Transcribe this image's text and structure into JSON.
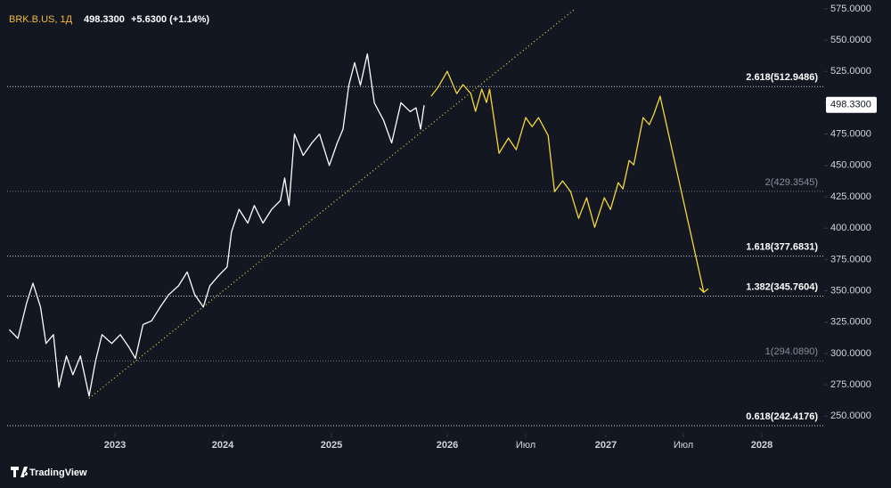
{
  "chart_data": {
    "type": "line",
    "symbol": "BRK.B.US, 1Д",
    "last_price": {
      "value": 498.33,
      "label": "498.3300"
    },
    "change": {
      "value": 5.63,
      "label": "+5.6300 (+1.14%)"
    },
    "brand": "TradingView",
    "xlim": [
      2022,
      2028.4
    ],
    "xticks": [
      2023,
      2024,
      2025,
      2026,
      {
        "value": 2026.5,
        "label": "Июл"
      },
      2027,
      {
        "value": 2027.5,
        "label": "Июл"
      },
      2028
    ],
    "ylim": [
      236,
      582
    ],
    "yticks": [
      {
        "value": 250,
        "label": "250.0000"
      },
      {
        "value": 275,
        "label": "275.0000"
      },
      {
        "value": 300,
        "label": "300.0000"
      },
      {
        "value": 325,
        "label": "325.0000"
      },
      {
        "value": 350,
        "label": "350.0000"
      },
      {
        "value": 375,
        "label": "375.0000"
      },
      {
        "value": 400,
        "label": "400.0000"
      },
      {
        "value": 425,
        "label": "425.0000"
      },
      {
        "value": 450,
        "label": "450.0000"
      },
      {
        "value": 475,
        "label": "475.0000"
      },
      {
        "value": 500,
        "label": "500.0000"
      },
      {
        "value": 525,
        "label": "525.0000"
      },
      {
        "value": 550,
        "label": "550.0000"
      },
      {
        "value": 575,
        "label": "575.0000"
      }
    ],
    "series": [
      {
        "color": "#ffffff",
        "x": [
          2022.02,
          2022.1,
          2022.18,
          2022.24,
          2022.31,
          2022.36,
          2022.43,
          2022.48,
          2022.55,
          2022.61,
          2022.68,
          2022.76,
          2022.82,
          2022.88,
          2022.97,
          2023.05,
          2023.13,
          2023.19,
          2023.26,
          2023.34,
          2023.42,
          2023.5,
          2023.59,
          2023.67,
          2023.74,
          2023.82,
          2023.88,
          2023.96,
          2024.04,
          2024.08,
          2024.15,
          2024.23,
          2024.29,
          2024.37,
          2024.45,
          2024.53,
          2024.57,
          2024.61,
          2024.66,
          2024.74,
          2024.82,
          2024.89,
          2024.98,
          2025.05,
          2025.1,
          2025.15,
          2025.2,
          2025.25,
          2025.31,
          2025.37,
          2025.45,
          2025.52,
          2025.6,
          2025.68,
          2025.73,
          2025.77,
          2025.8
        ],
        "values": [
          319,
          312,
          340,
          356,
          337,
          308,
          315,
          273,
          298,
          283,
          298,
          266,
          294,
          315,
          308,
          315,
          305,
          296,
          323,
          326,
          337,
          347,
          354,
          365,
          347,
          337,
          354,
          362,
          369,
          397,
          415,
          404,
          418,
          404,
          415,
          422,
          440,
          418,
          475,
          458,
          468,
          475,
          450,
          468,
          479,
          514,
          532,
          514,
          539,
          500,
          486,
          468,
          500,
          493,
          496,
          479,
          498
        ]
      },
      {
        "color": "#f5d63d",
        "x": [
          2025.86,
          2025.92,
          2026.0,
          2026.06,
          2026.1,
          2026.15,
          2026.18,
          2026.22,
          2026.25,
          2026.27,
          2026.33,
          2026.39,
          2026.44,
          2026.5,
          2026.54,
          2026.58,
          2026.64,
          2026.68,
          2026.73,
          2026.78,
          2026.83,
          2026.88,
          2026.93,
          2026.99,
          2027.03,
          2027.08,
          2027.11,
          2027.15,
          2027.18,
          2027.24,
          2027.28,
          2027.31,
          2027.35,
          2027.63
        ],
        "values": [
          505.2,
          512.3,
          525.1,
          507.3,
          514.5,
          507.3,
          493.1,
          510.9,
          500.2,
          510.9,
          459.7,
          471.8,
          462.6,
          488.2,
          481.0,
          488.2,
          473.9,
          429.1,
          437.7,
          429.1,
          407.8,
          424.2,
          400.7,
          424.2,
          414.9,
          436.3,
          431.3,
          454.0,
          450.5,
          488.2,
          482.5,
          491.0,
          505.2,
          348.8
        ]
      }
    ],
    "trendline": {
      "color": "#f5d63d",
      "x": [
        2022.76,
        2026.81
      ],
      "values": [
        264.2,
        575.1
      ]
    },
    "levels": [
      {
        "label": "2.618(512.9486)",
        "value": 512.9486,
        "color": "#ffffff"
      },
      {
        "label": "2(429.3545)",
        "value": 429.3545,
        "color": "#8a8e99"
      },
      {
        "label": "1.618(377.6831)",
        "value": 377.6831,
        "color": "#ffffff"
      },
      {
        "label": "1.382(345.7604)",
        "value": 345.7604,
        "color": "#ffffff"
      },
      {
        "label": "1(294.0890)",
        "value": 294.089,
        "color": "#8a8e99"
      },
      {
        "label": "0.618(242.4176)",
        "value": 242.4176,
        "color": "#ffffff"
      }
    ]
  }
}
